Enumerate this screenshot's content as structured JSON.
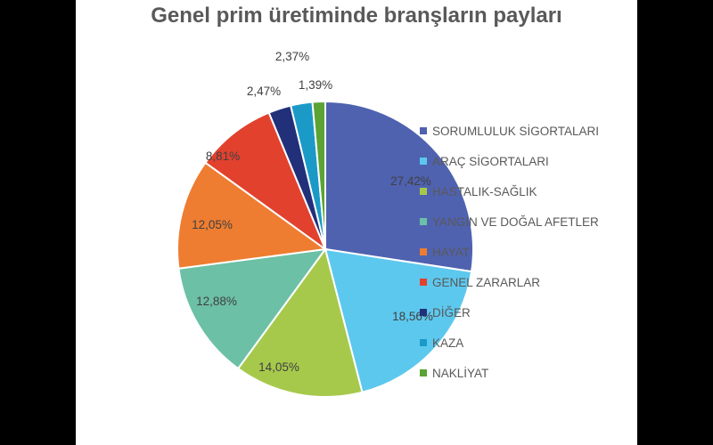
{
  "chart_data": {
    "type": "pie",
    "title": "Genel prim üretiminde branşların payları",
    "legend_position": "right",
    "slices": [
      {
        "name": "SORUMLULUK SİGORTALARI",
        "value": 27.42,
        "label": "27,42%",
        "color": "#4F62B0"
      },
      {
        "name": "ARAÇ SİGORTALARI",
        "value": 18.56,
        "label": "18,56%",
        "color": "#5DC8EE"
      },
      {
        "name": "HASTALIK-SAĞLIK",
        "value": 14.05,
        "label": "14,05%",
        "color": "#A6C94C"
      },
      {
        "name": "YANGIN VE DOĞAL AFETLER",
        "value": 12.88,
        "label": "12,88%",
        "color": "#6CC0A6"
      },
      {
        "name": "HAYAT",
        "value": 12.05,
        "label": "12,05%",
        "color": "#EE7D31"
      },
      {
        "name": "GENEL ZARARLAR",
        "value": 8.81,
        "label": "8,81%",
        "color": "#E2412E"
      },
      {
        "name": "DİĞER",
        "value": 2.47,
        "label": "2,47%",
        "color": "#22307A"
      },
      {
        "name": "KAZA",
        "value": 2.37,
        "label": "2,37%",
        "color": "#1B9AC8"
      },
      {
        "name": "NAKLİYAT",
        "value": 1.39,
        "label": "1,39%",
        "color": "#5BA335"
      }
    ]
  }
}
